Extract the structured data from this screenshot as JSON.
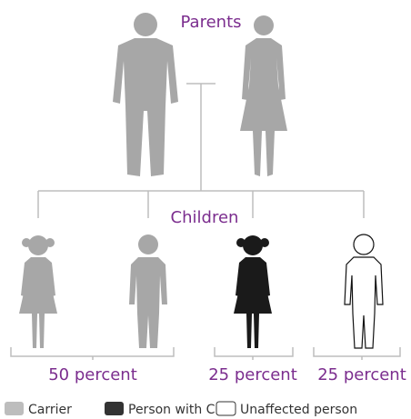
{
  "parents_label": "Parents",
  "children_label": "Children",
  "groups": [
    {
      "label": "50 percent"
    },
    {
      "label": "25 percent"
    },
    {
      "label": "25 percent"
    }
  ],
  "legend": [
    {
      "label": "Carrier"
    },
    {
      "label": "Person with CF"
    },
    {
      "label": "Unaffected person"
    }
  ]
}
